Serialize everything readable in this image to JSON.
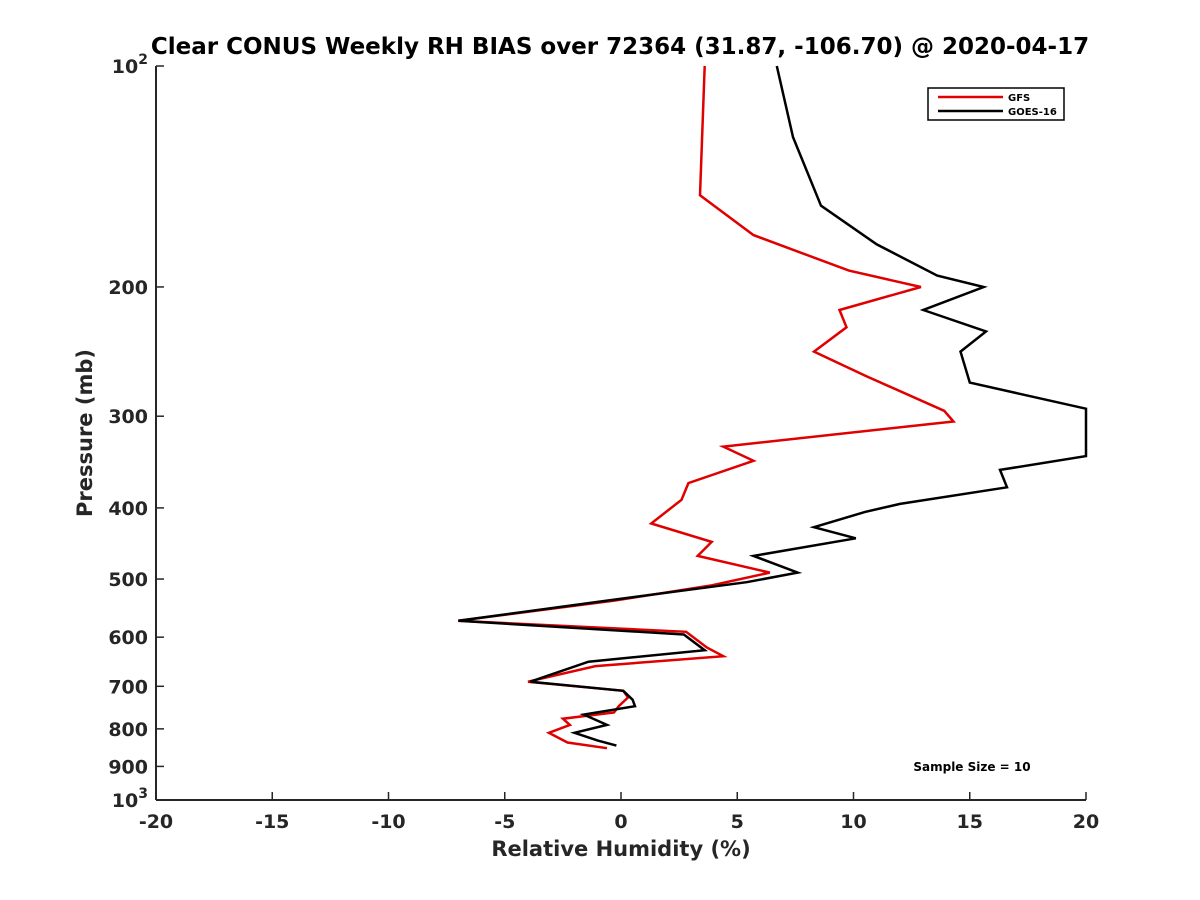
{
  "chart_data": {
    "type": "line",
    "title": "Clear CONUS Weekly RH BIAS over 72364 (31.87, -106.70) @ 2020-04-17",
    "xlabel": "Relative Humidity (%)",
    "ylabel": "Pressure (mb)",
    "xlim": [
      -20,
      20
    ],
    "ylim": [
      100,
      1000
    ],
    "y_scale": "log",
    "y_reversed": true,
    "grid": false,
    "legend_position": "top-right",
    "x_ticks": [
      "-20",
      "-15",
      "-10",
      "-5",
      "0",
      "5",
      "10",
      "15",
      "20"
    ],
    "y_ticks": [
      {
        "value": 100,
        "base": "10",
        "exp": "2"
      },
      {
        "value": 200,
        "label": "200"
      },
      {
        "value": 300,
        "label": "300"
      },
      {
        "value": 400,
        "label": "400"
      },
      {
        "value": 500,
        "label": "500"
      },
      {
        "value": 600,
        "label": "600"
      },
      {
        "value": 700,
        "label": "700"
      },
      {
        "value": 800,
        "label": "800"
      },
      {
        "value": 900,
        "label": "900"
      },
      {
        "value": 1000,
        "base": "10",
        "exp": "3"
      }
    ],
    "series": [
      {
        "name": "GFS",
        "color": "#e00000",
        "points": [
          [
            3.6,
            100
          ],
          [
            3.4,
            150
          ],
          [
            5.7,
            170
          ],
          [
            9.8,
            190
          ],
          [
            12.9,
            200
          ],
          [
            9.4,
            215
          ],
          [
            9.7,
            227
          ],
          [
            8.3,
            245
          ],
          [
            10.6,
            265
          ],
          [
            13.9,
            295
          ],
          [
            14.3,
            305
          ],
          [
            4.4,
            330
          ],
          [
            5.7,
            345
          ],
          [
            2.9,
            370
          ],
          [
            2.6,
            390
          ],
          [
            1.3,
            420
          ],
          [
            3.9,
            445
          ],
          [
            3.3,
            465
          ],
          [
            6.4,
            490
          ],
          [
            3.9,
            510
          ],
          [
            -0.3,
            535
          ],
          [
            -7.0,
            570
          ],
          [
            2.8,
            590
          ],
          [
            3.7,
            620
          ],
          [
            4.4,
            637
          ],
          [
            -1.1,
            657
          ],
          [
            -4.0,
            690
          ],
          [
            0.1,
            710
          ],
          [
            0.3,
            725
          ],
          [
            -0.1,
            745
          ],
          [
            -0.3,
            760
          ],
          [
            -2.5,
            775
          ],
          [
            -2.2,
            790
          ],
          [
            -3.1,
            810
          ],
          [
            -2.3,
            835
          ],
          [
            -0.6,
            850
          ]
        ]
      },
      {
        "name": "GOES-16",
        "color": "#000000",
        "points": [
          [
            6.7,
            100
          ],
          [
            7.4,
            125
          ],
          [
            8.6,
            155
          ],
          [
            11.0,
            175
          ],
          [
            13.6,
            193
          ],
          [
            15.6,
            200
          ],
          [
            13.0,
            215
          ],
          [
            15.7,
            230
          ],
          [
            14.6,
            245
          ],
          [
            15.0,
            270
          ],
          [
            20.0,
            293
          ],
          [
            20.0,
            340
          ],
          [
            16.3,
            355
          ],
          [
            16.6,
            375
          ],
          [
            12.0,
            395
          ],
          [
            10.5,
            405
          ],
          [
            8.3,
            425
          ],
          [
            10.1,
            440
          ],
          [
            5.7,
            465
          ],
          [
            7.6,
            490
          ],
          [
            5.4,
            505
          ],
          [
            -0.6,
            535
          ],
          [
            -7.0,
            570
          ],
          [
            2.7,
            595
          ],
          [
            3.6,
            625
          ],
          [
            -1.4,
            648
          ],
          [
            -3.9,
            690
          ],
          [
            0.1,
            710
          ],
          [
            0.5,
            730
          ],
          [
            0.6,
            745
          ],
          [
            -1.6,
            765
          ],
          [
            -0.6,
            790
          ],
          [
            -2.0,
            810
          ],
          [
            -1.0,
            830
          ],
          [
            -0.2,
            843
          ]
        ]
      }
    ],
    "annotations": [
      {
        "text": "Sample Size = 10"
      }
    ]
  }
}
